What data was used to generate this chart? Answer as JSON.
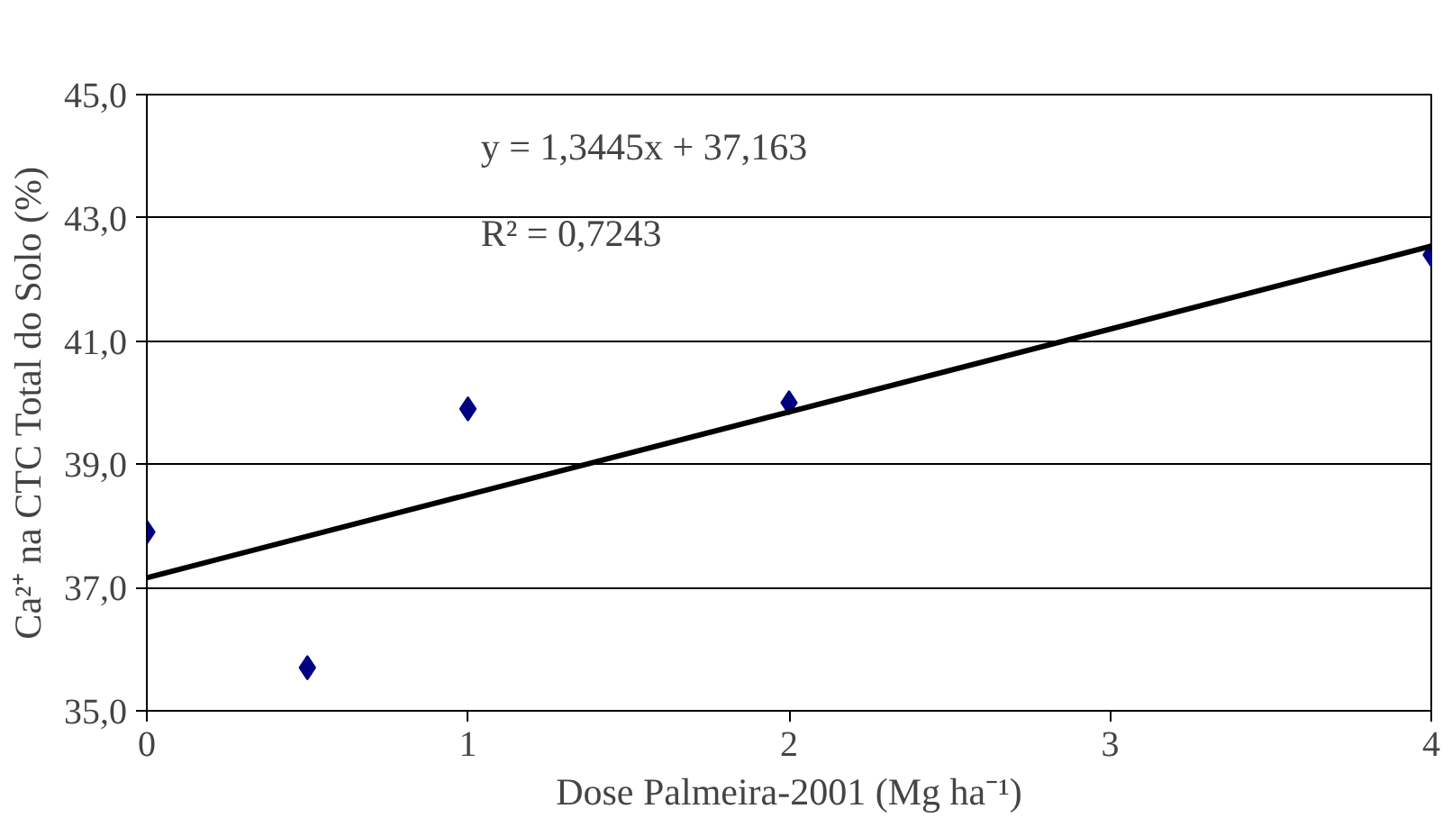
{
  "chart_data": {
    "type": "scatter",
    "xlabel": "Dose Palmeira-2001 (Mg ha⁻¹)",
    "ylabel": "Ca²⁺ na CTC Total do Solo (%)",
    "x": [
      0,
      0.5,
      1,
      2,
      4
    ],
    "series": [
      {
        "color": "#000080",
        "marker": "diamond",
        "values": [
          37.9,
          35.7,
          39.9,
          40.0,
          42.4
        ]
      },
      {
        "type": "line",
        "color": "#000000",
        "x": [
          0,
          4
        ],
        "values": [
          37.16,
          42.54
        ]
      }
    ],
    "grid": "y",
    "xlim": [
      0,
      4
    ],
    "xticks": [
      0,
      1,
      2,
      3,
      4
    ],
    "ylim": [
      35,
      45
    ],
    "yticks": [
      {
        "value": 35,
        "label": "35,0"
      },
      {
        "value": 37,
        "label": "37,0"
      },
      {
        "value": 39,
        "label": "39,0"
      },
      {
        "value": 41,
        "label": "41,0"
      },
      {
        "value": 43,
        "label": "43,0"
      },
      {
        "value": 45,
        "label": "45,0"
      }
    ],
    "annotations": [
      "y = 1,3445x + 37,163",
      "R² = 0,7243"
    ]
  }
}
